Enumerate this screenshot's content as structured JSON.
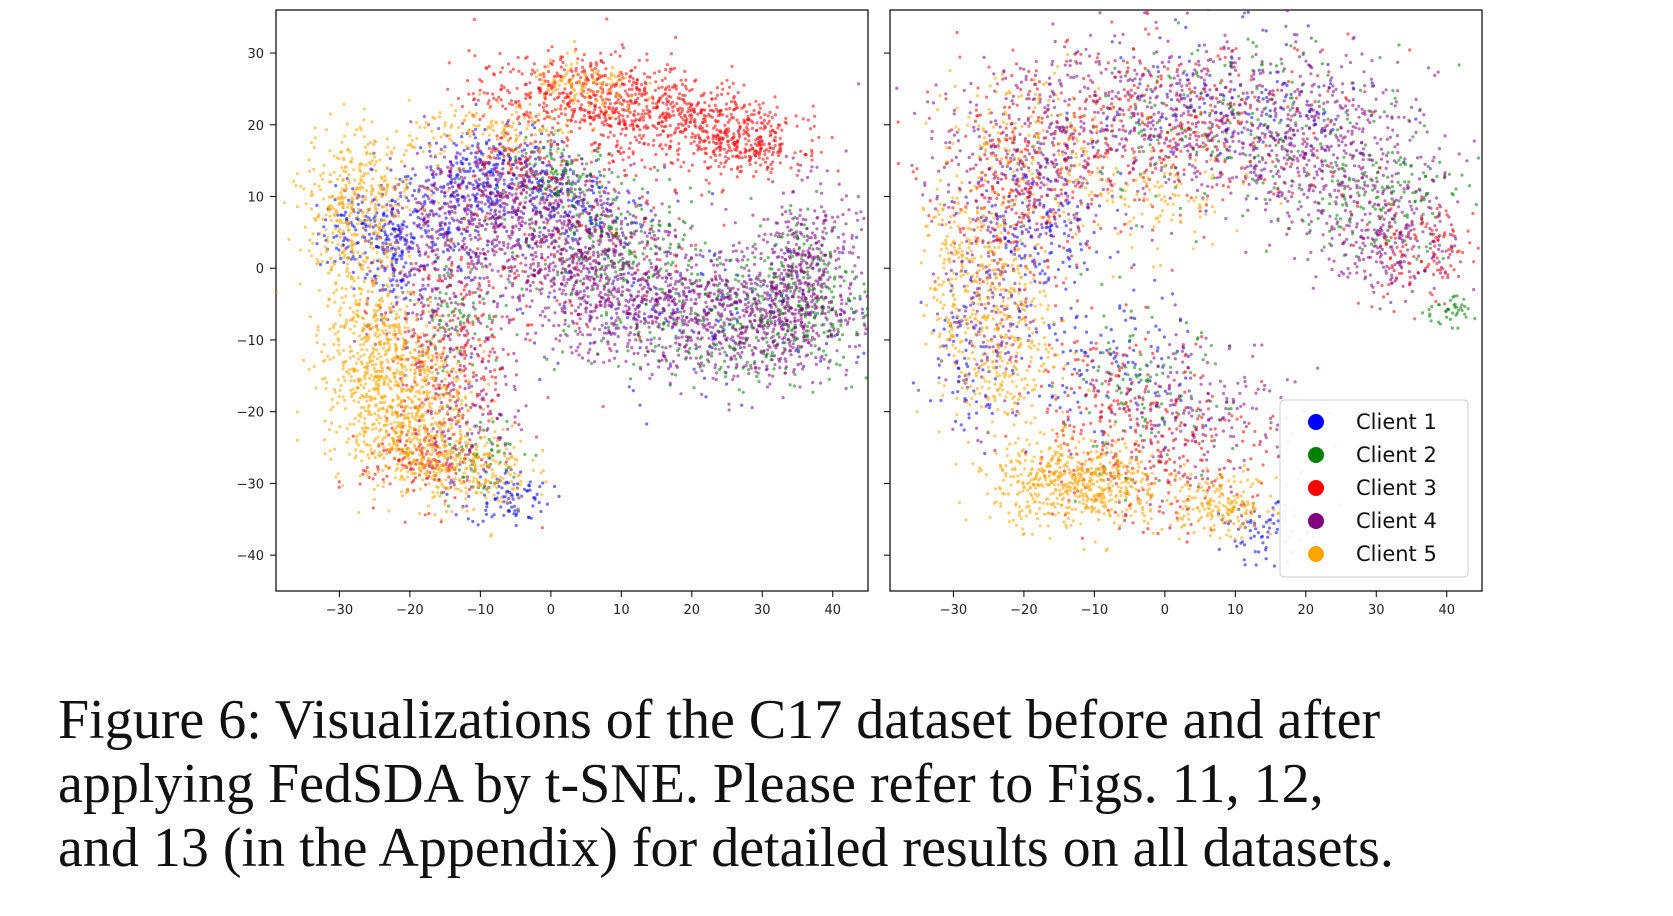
{
  "caption": {
    "lines": [
      "Figure 6: Visualizations of the C17 dataset before and after",
      "applying FedSDA by t-SNE. Please refer to Figs. 11, 12,",
      "and 13 (in the Appendix) for detailed results on all datasets."
    ]
  },
  "chart_data": [
    {
      "type": "scatter",
      "title": "",
      "xlabel": "",
      "ylabel": "",
      "xlim": [
        -39,
        45
      ],
      "ylim": [
        -45,
        36
      ],
      "xticks": [
        -30,
        -20,
        -10,
        0,
        10,
        20,
        30,
        40
      ],
      "yticks": [
        30,
        20,
        10,
        0,
        -10,
        -20,
        -30,
        -40
      ],
      "legend": false,
      "grid": false,
      "series": [
        {
          "color": "#0000ff",
          "clusters": [
            [
              -27,
              5,
              3,
              3,
              120
            ],
            [
              -22,
              2,
              2,
              4,
              120
            ],
            [
              -8,
              13,
              6,
              3,
              260
            ],
            [
              4,
              8,
              6,
              3,
              160
            ],
            [
              -6,
              -32,
              3,
              2,
              90
            ],
            [
              -16,
              6,
              4,
              4,
              120
            ],
            [
              20,
              -6,
              14,
              5,
              160
            ]
          ]
        },
        {
          "color": "#008000",
          "clusters": [
            [
              2,
              12,
              4,
              3,
              140
            ],
            [
              10,
              2,
              6,
              4,
              180
            ],
            [
              26,
              -8,
              10,
              4,
              300
            ],
            [
              36,
              -2,
              4,
              6,
              170
            ],
            [
              -13,
              -6,
              3,
              4,
              80
            ],
            [
              -10,
              -26,
              3,
              3,
              60
            ]
          ]
        },
        {
          "color": "#ff0000",
          "clusters": [
            [
              5,
              24,
              8,
              3,
              520
            ],
            [
              20,
              20,
              7,
              3,
              420
            ],
            [
              28,
              17,
              4,
              2,
              200
            ],
            [
              -14,
              -12,
              5,
              8,
              240
            ],
            [
              -19,
              -27,
              4,
              3,
              130
            ],
            [
              4,
              3,
              8,
              6,
              140
            ],
            [
              -4,
              15,
              4,
              2,
              80
            ]
          ]
        },
        {
          "color": "#800080",
          "clusters": [
            [
              -8,
              9,
              8,
              4,
              520
            ],
            [
              3,
              2,
              8,
              4,
              420
            ],
            [
              14,
              -5,
              9,
              4,
              520
            ],
            [
              28,
              -8,
              8,
              4,
              460
            ],
            [
              36,
              0,
              4,
              6,
              400
            ],
            [
              -17,
              -4,
              5,
              6,
              200
            ],
            [
              -12,
              -20,
              4,
              6,
              160
            ]
          ]
        },
        {
          "color": "#ffa500",
          "clusters": [
            [
              -29,
              8,
              3,
              6,
              240
            ],
            [
              -26,
              -8,
              3,
              8,
              260
            ],
            [
              -22,
              -16,
              5,
              6,
              620
            ],
            [
              -19,
              -25,
              4,
              3,
              230
            ],
            [
              -11,
              -28,
              4,
              3,
              200
            ],
            [
              -8,
              19,
              6,
              2,
              140
            ],
            [
              5,
              25,
              4,
              2,
              120
            ],
            [
              -25,
              12,
              4,
              3,
              130
            ]
          ]
        }
      ]
    },
    {
      "type": "scatter",
      "title": "",
      "xlabel": "",
      "ylabel": "",
      "xlim": [
        -39,
        45
      ],
      "ylim": [
        -45,
        36
      ],
      "xticks": [
        -30,
        -20,
        -10,
        0,
        10,
        20,
        30,
        40
      ],
      "yticks": [
        30,
        20,
        10,
        0,
        -10,
        -20,
        -30,
        -40
      ],
      "legend": true,
      "legend_loc": "lower-right",
      "grid": false,
      "series": [
        {
          "name": "Client 1",
          "color": "#0000ff",
          "clusters": [
            [
              -18,
              5,
              5,
              6,
              180
            ],
            [
              10,
              22,
              10,
              5,
              160
            ],
            [
              -8,
              -15,
              6,
              6,
              140
            ],
            [
              14,
              -37,
              3,
              2,
              70
            ],
            [
              -28,
              -12,
              3,
              6,
              80
            ]
          ]
        },
        {
          "name": "Client 2",
          "color": "#008000",
          "clusters": [
            [
              12,
              20,
              12,
              6,
              220
            ],
            [
              30,
              10,
              6,
              4,
              150
            ],
            [
              40,
              -6,
              2,
              1,
              40
            ],
            [
              -3,
              -18,
              6,
              6,
              120
            ]
          ]
        },
        {
          "name": "Client 3",
          "color": "#ff0000",
          "clusters": [
            [
              0,
              20,
              14,
              6,
              380
            ],
            [
              -20,
              10,
              6,
              6,
              200
            ],
            [
              36,
              2,
              4,
              4,
              120
            ],
            [
              2,
              -25,
              8,
              6,
              220
            ],
            [
              -10,
              -20,
              5,
              6,
              140
            ]
          ]
        },
        {
          "name": "Client 4",
          "color": "#800080",
          "clusters": [
            [
              0,
              22,
              14,
              6,
              600
            ],
            [
              22,
              16,
              8,
              5,
              420
            ],
            [
              32,
              4,
              5,
              4,
              240
            ],
            [
              -20,
              12,
              6,
              6,
              280
            ],
            [
              -25,
              -5,
              3,
              8,
              160
            ],
            [
              5,
              -20,
              7,
              6,
              200
            ]
          ]
        },
        {
          "name": "Client 5",
          "color": "#ffa500",
          "clusters": [
            [
              -24,
              -8,
              4,
              9,
              420
            ],
            [
              -12,
              -30,
              6,
              3,
              580
            ],
            [
              8,
              -33,
              4,
              2,
              200
            ],
            [
              -20,
              18,
              6,
              5,
              150
            ],
            [
              -4,
              10,
              8,
              4,
              150
            ],
            [
              -30,
              0,
              2,
              6,
              120
            ]
          ]
        }
      ]
    }
  ]
}
